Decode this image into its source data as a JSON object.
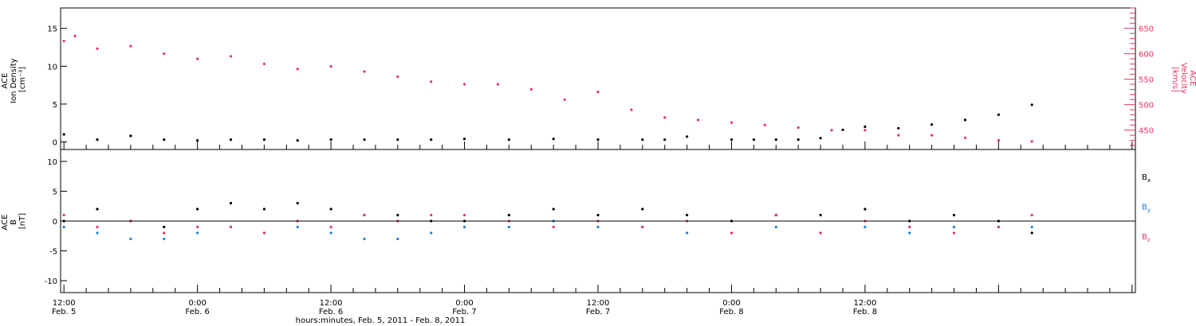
{
  "colors": {
    "density": "#000000",
    "velocity": "#e8335f",
    "bx": "#000000",
    "by": "#1f7fd6",
    "bz": "#e8335f",
    "axis": "#000000"
  },
  "chart_data": [
    {
      "type": "scatter",
      "panel": "top",
      "ylabel_lines": [
        "ACE",
        "Ion Density",
        "[cm⁻³]"
      ],
      "ylabel_right_lines": [
        "ACE",
        "Velocity",
        "[km/s]"
      ],
      "ylim": [
        -1,
        17.7
      ],
      "yticks": [
        0,
        5,
        10,
        15
      ],
      "ylim_right": [
        412,
        690
      ],
      "yticks_right": [
        450,
        500,
        550,
        600,
        650
      ],
      "series": [
        {
          "key": "density",
          "axis": "left",
          "marker": "dot",
          "x": [
            0,
            3,
            6,
            9,
            12,
            15,
            18,
            21,
            24,
            27,
            30,
            33,
            36,
            40,
            44,
            48,
            52,
            54,
            56,
            60,
            62,
            64,
            66,
            68,
            70,
            72,
            75,
            78,
            81,
            84,
            87
          ],
          "y": [
            1.0,
            0.3,
            0.8,
            0.3,
            0.2,
            0.3,
            0.3,
            0.2,
            0.3,
            0.3,
            0.3,
            0.3,
            0.4,
            0.3,
            0.4,
            0.3,
            0.3,
            0.3,
            0.7,
            0.3,
            0.3,
            0.3,
            0.3,
            0.5,
            1.6,
            2.0,
            1.8,
            2.3,
            2.9,
            3.6,
            4.9
          ]
        },
        {
          "key": "velocity",
          "axis": "right",
          "marker": "dot",
          "x": [
            0,
            1,
            3,
            6,
            9,
            12,
            15,
            18,
            21,
            24,
            27,
            30,
            33,
            36,
            39,
            42,
            45,
            48,
            51,
            54,
            57,
            60,
            63,
            66,
            69,
            72,
            75,
            78,
            81,
            84,
            87
          ],
          "y": [
            625,
            635,
            610,
            615,
            600,
            590,
            595,
            580,
            570,
            575,
            565,
            555,
            545,
            540,
            540,
            530,
            510,
            525,
            490,
            475,
            470,
            465,
            460,
            455,
            450,
            450,
            440,
            440,
            435,
            430,
            428
          ]
        }
      ]
    },
    {
      "type": "scatter",
      "panel": "bottom",
      "ylabel_lines": [
        "ACE",
        "B",
        "[nT]"
      ],
      "ylim": [
        -12,
        12
      ],
      "yticks": [
        -10,
        -5,
        0,
        5,
        10
      ],
      "hline": 0,
      "xlabel": "hours:minutes, Feb.  5, 2011 - Feb.  8, 2011",
      "xlim": [
        -0.3,
        96.3
      ],
      "xticks": [
        {
          "x": 0,
          "time": "12:00",
          "date": "Feb. 5"
        },
        {
          "x": 12,
          "time": "0:00",
          "date": "Feb. 6"
        },
        {
          "x": 24,
          "time": "12:00",
          "date": "Feb. 6"
        },
        {
          "x": 36,
          "time": "0:00",
          "date": "Feb. 7"
        },
        {
          "x": 48,
          "time": "12:00",
          "date": "Feb. 7"
        },
        {
          "x": 60,
          "time": "0:00",
          "date": "Feb. 8"
        },
        {
          "x": 72,
          "time": "12:00",
          "date": "Feb. 8"
        }
      ],
      "legend": [
        {
          "key": "bx",
          "label": "B",
          "sub": "x"
        },
        {
          "key": "by",
          "label": "B",
          "sub": "y"
        },
        {
          "key": "bz",
          "label": "B",
          "sub": "z"
        }
      ],
      "series": [
        {
          "key": "bx",
          "marker": "dot",
          "x": [
            0,
            3,
            6,
            9,
            12,
            15,
            18,
            21,
            24,
            27,
            30,
            33,
            36,
            40,
            44,
            48,
            52,
            56,
            60,
            64,
            68,
            72,
            76,
            80,
            84,
            87
          ],
          "y": [
            0,
            2,
            0,
            -1,
            2,
            3,
            2,
            3,
            2,
            1,
            1,
            0,
            0,
            1,
            2,
            1,
            2,
            1,
            0,
            1,
            1,
            2,
            0,
            1,
            0,
            -2
          ]
        },
        {
          "key": "by",
          "marker": "dot",
          "x": [
            0,
            3,
            6,
            9,
            12,
            15,
            18,
            21,
            24,
            27,
            30,
            33,
            36,
            40,
            44,
            48,
            52,
            56,
            60,
            64,
            68,
            72,
            76,
            80,
            84,
            87
          ],
          "y": [
            -1,
            -2,
            -3,
            -3,
            -2,
            -1,
            -2,
            -1,
            -2,
            -3,
            -3,
            -2,
            -1,
            -1,
            0,
            -1,
            -1,
            -2,
            -2,
            -1,
            -2,
            -1,
            -2,
            -1,
            -1,
            -1
          ]
        },
        {
          "key": "bz",
          "marker": "dot",
          "x": [
            0,
            3,
            6,
            9,
            12,
            15,
            18,
            21,
            24,
            27,
            30,
            33,
            36,
            40,
            44,
            48,
            52,
            56,
            60,
            64,
            68,
            72,
            76,
            80,
            84,
            87
          ],
          "y": [
            1,
            -1,
            0,
            -2,
            -1,
            -1,
            -2,
            0,
            -1,
            1,
            0,
            1,
            1,
            0,
            -1,
            0,
            -1,
            0,
            -2,
            1,
            -2,
            0,
            -1,
            -2,
            -1,
            1
          ]
        }
      ]
    }
  ]
}
